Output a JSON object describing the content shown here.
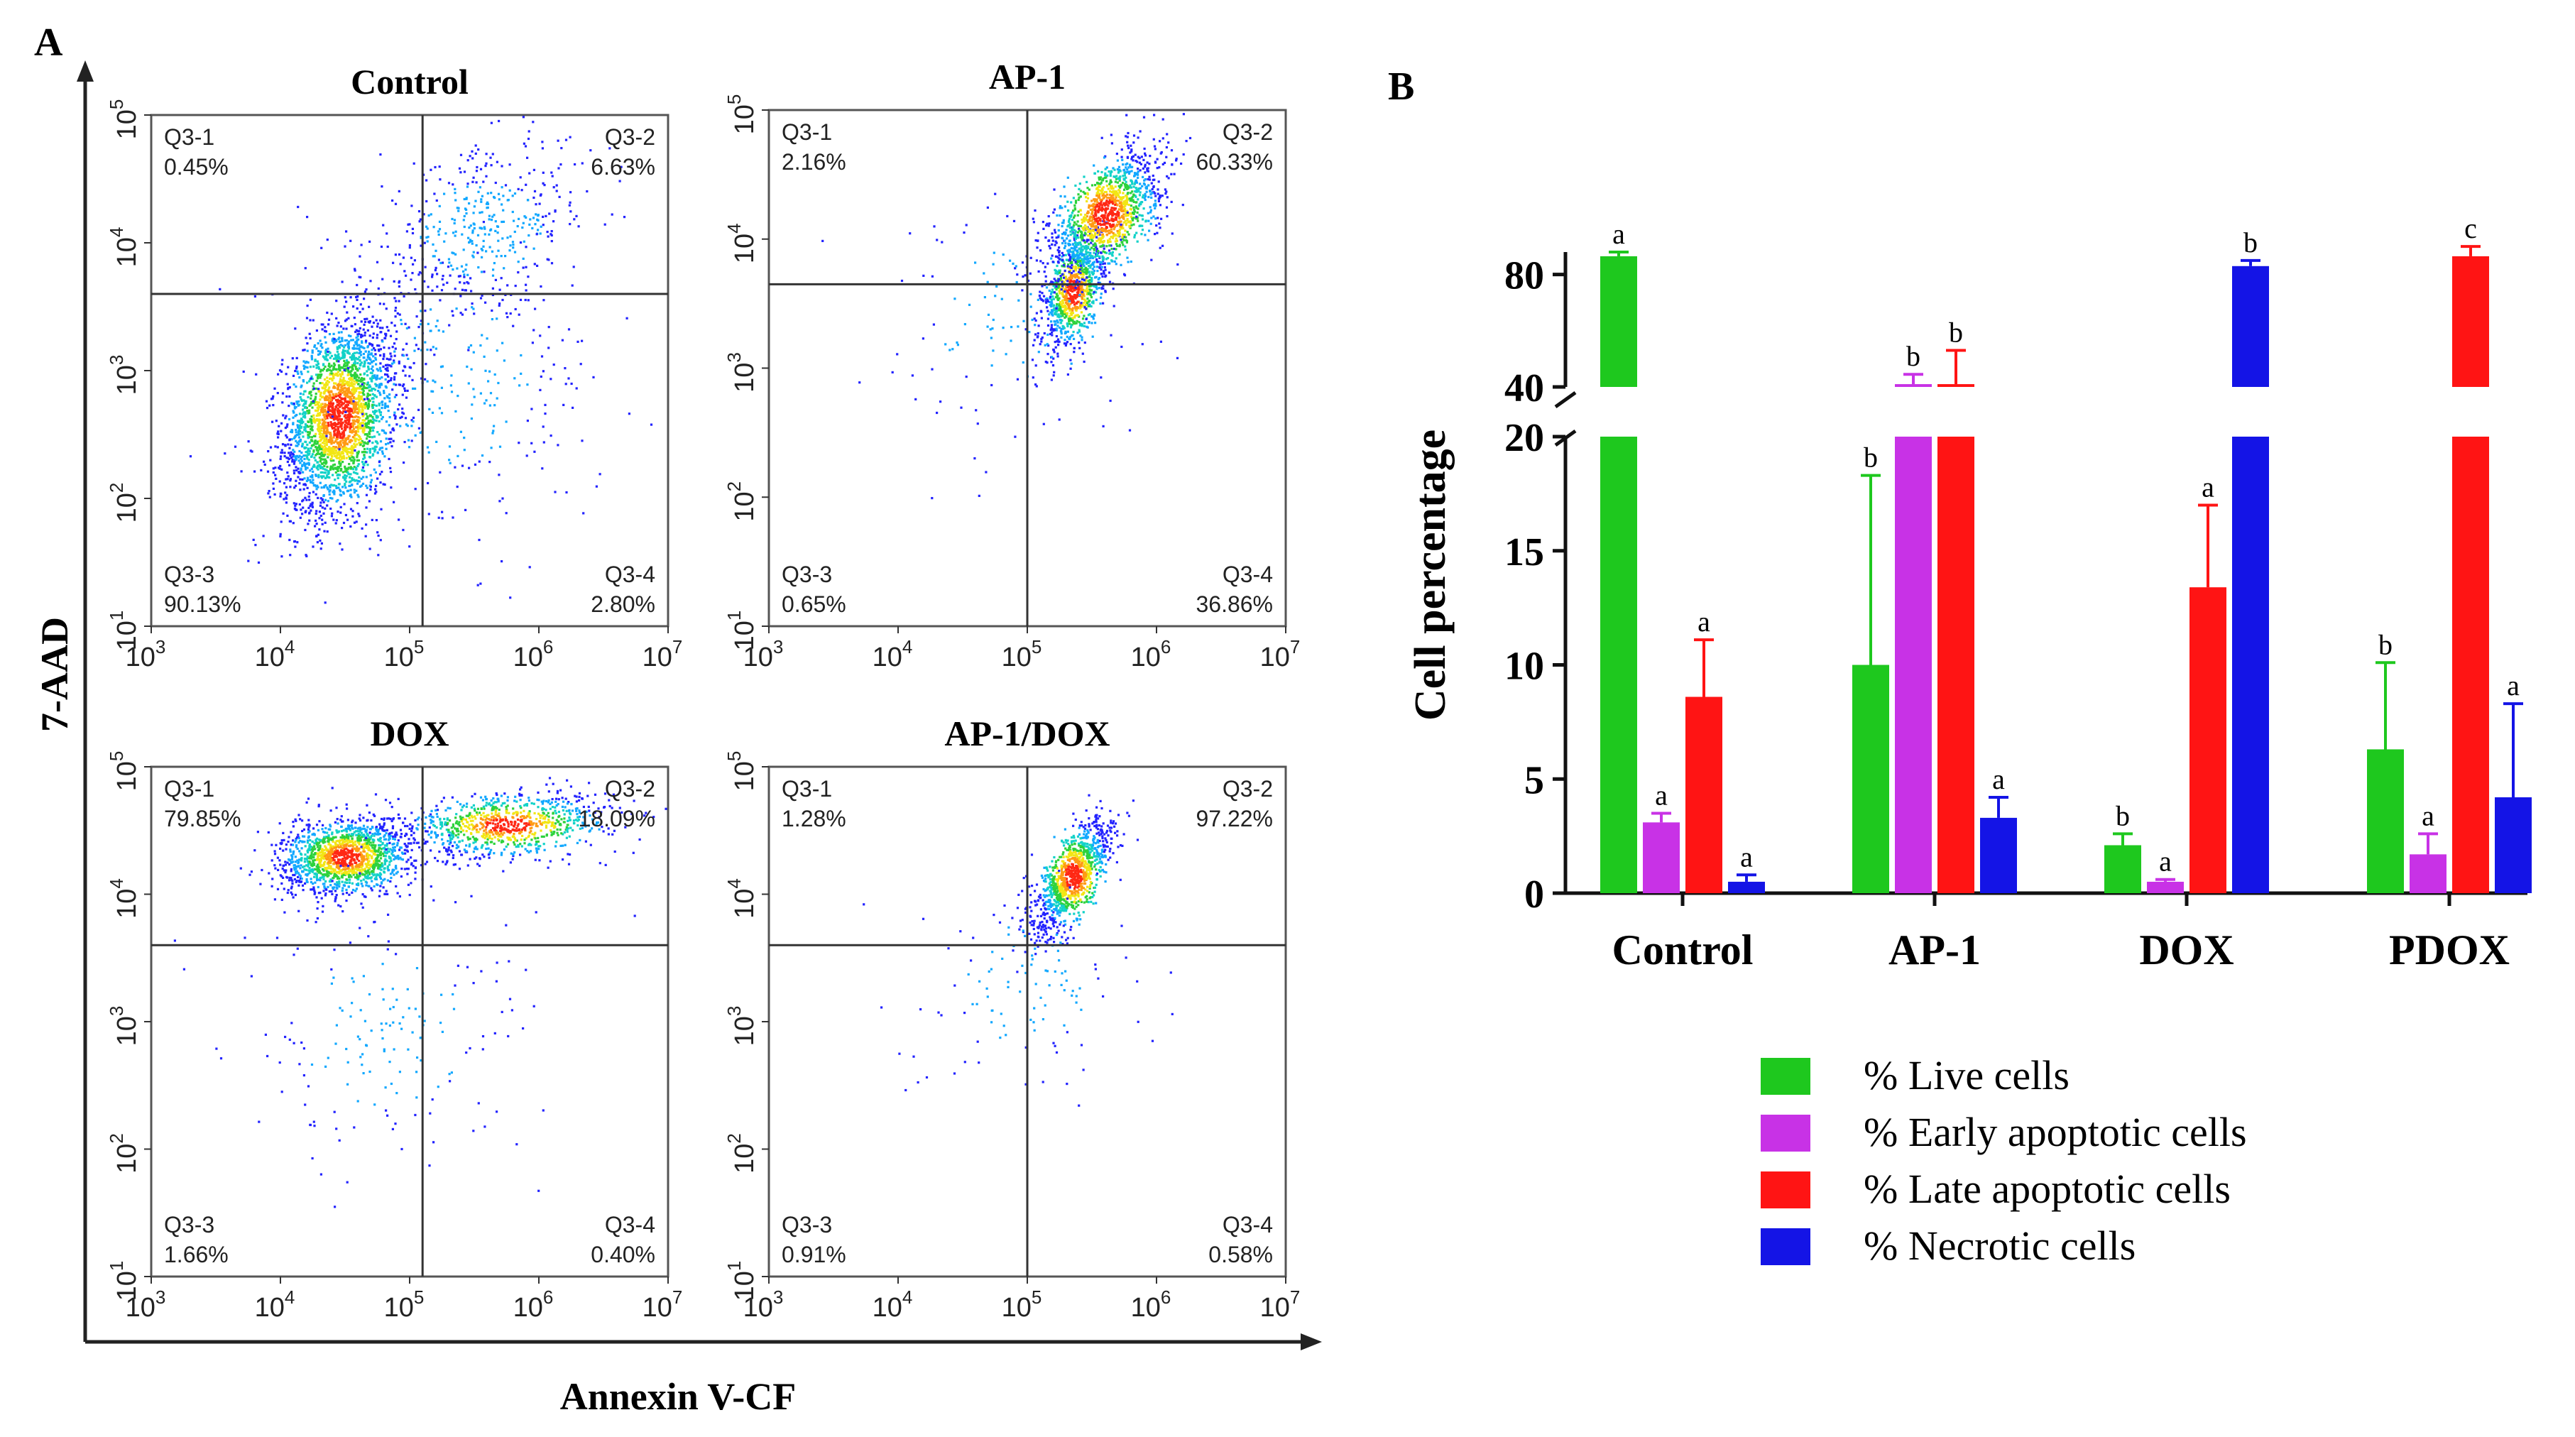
{
  "figure": {
    "panel_a_label": "A",
    "panel_b_label": "B",
    "y_axis_label_a": "7-AAD",
    "x_axis_label_a": "Annexin V-CF"
  },
  "flow_axes": {
    "x_ticks": [
      {
        "base": "10",
        "exp": "3"
      },
      {
        "base": "10",
        "exp": "4"
      },
      {
        "base": "10",
        "exp": "5"
      },
      {
        "base": "10",
        "exp": "6"
      },
      {
        "base": "10",
        "exp": "7"
      }
    ],
    "y_ticks": [
      {
        "base": "10",
        "exp": "1"
      },
      {
        "base": "10",
        "exp": "2"
      },
      {
        "base": "10",
        "exp": "3"
      },
      {
        "base": "10",
        "exp": "4"
      },
      {
        "base": "10",
        "exp": "5"
      }
    ],
    "x_range_log": [
      3,
      7
    ],
    "y_range_log": [
      1,
      5
    ]
  },
  "flow_plots": [
    {
      "title": "Control",
      "gate_x_log": 5.1,
      "gate_y_log": 3.6,
      "quadrants": {
        "q1": {
          "name": "Q3-1",
          "value": "0.45%"
        },
        "q2": {
          "name": "Q3-2",
          "value": "6.63%"
        },
        "q3": {
          "name": "Q3-3",
          "value": "90.13%"
        },
        "q4": {
          "name": "Q3-4",
          "value": "2.80%"
        }
      },
      "clusters": [
        {
          "cx": 4.45,
          "cy": 2.65,
          "sx": 0.22,
          "sy": 0.38,
          "n": 2600,
          "rho": 0.3
        },
        {
          "cx": 5.55,
          "cy": 4.1,
          "sx": 0.45,
          "sy": 0.35,
          "n": 420,
          "rho": 0.4
        },
        {
          "cx": 5.3,
          "cy": 2.9,
          "sx": 0.6,
          "sy": 0.6,
          "n": 300,
          "rho": 0.0
        }
      ]
    },
    {
      "title": "AP-1",
      "gate_x_log": 5.0,
      "gate_y_log": 3.65,
      "quadrants": {
        "q1": {
          "name": "Q3-1",
          "value": "2.16%"
        },
        "q2": {
          "name": "Q3-2",
          "value": "60.33%"
        },
        "q3": {
          "name": "Q3-3",
          "value": "0.65%"
        },
        "q4": {
          "name": "Q3-4",
          "value": "36.86%"
        }
      },
      "clusters": [
        {
          "cx": 5.35,
          "cy": 3.6,
          "sx": 0.12,
          "sy": 0.22,
          "n": 900,
          "rho": 0.5
        },
        {
          "cx": 5.6,
          "cy": 4.2,
          "sx": 0.22,
          "sy": 0.25,
          "n": 1300,
          "rho": 0.6
        },
        {
          "cx": 4.9,
          "cy": 3.4,
          "sx": 0.6,
          "sy": 0.5,
          "n": 120,
          "rho": 0.0
        }
      ]
    },
    {
      "title": "DOX",
      "gate_x_log": 5.1,
      "gate_y_log": 3.6,
      "quadrants": {
        "q1": {
          "name": "Q3-1",
          "value": "79.85%"
        },
        "q2": {
          "name": "Q3-2",
          "value": "18.09%"
        },
        "q3": {
          "name": "Q3-3",
          "value": "1.66%"
        },
        "q4": {
          "name": "Q3-4",
          "value": "0.40%"
        }
      },
      "clusters": [
        {
          "cx": 4.5,
          "cy": 4.3,
          "sx": 0.25,
          "sy": 0.15,
          "n": 1500,
          "rho": 0.2
        },
        {
          "cx": 5.75,
          "cy": 4.55,
          "sx": 0.4,
          "sy": 0.13,
          "n": 900,
          "rho": 0.3
        },
        {
          "cx": 4.8,
          "cy": 2.9,
          "sx": 0.6,
          "sy": 0.55,
          "n": 180,
          "rho": 0.0
        }
      ]
    },
    {
      "title": "AP-1/DOX",
      "gate_x_log": 5.0,
      "gate_y_log": 3.6,
      "quadrants": {
        "q1": {
          "name": "Q3-1",
          "value": "1.28%"
        },
        "q2": {
          "name": "Q3-2",
          "value": "97.22%"
        },
        "q3": {
          "name": "Q3-3",
          "value": "0.91%"
        },
        "q4": {
          "name": "Q3-4",
          "value": "0.58%"
        }
      },
      "clusters": [
        {
          "cx": 5.35,
          "cy": 4.15,
          "sx": 0.15,
          "sy": 0.22,
          "n": 1100,
          "rho": 0.7
        },
        {
          "cx": 5.0,
          "cy": 3.3,
          "sx": 0.45,
          "sy": 0.45,
          "n": 120,
          "rho": 0.2
        }
      ]
    }
  ],
  "chart_data": {
    "type": "bar",
    "ylabel": "Cell percentage",
    "categories": [
      "Control",
      "AP-1",
      "DOX",
      "PDOX"
    ],
    "y_ticks_lower": [
      "0",
      "5",
      "10",
      "15",
      "20"
    ],
    "y_ticks_upper": [
      "40",
      "80"
    ],
    "lower_range": [
      0,
      20
    ],
    "upper_range": [
      40,
      88
    ],
    "series": [
      {
        "name": "% Live cells",
        "color": "#1ec81e",
        "values": [
          86.5,
          10.0,
          2.1,
          6.3
        ],
        "errors": [
          1.5,
          8.3,
          0.5,
          3.8
        ],
        "labels": [
          "a",
          "b",
          "b",
          "b"
        ]
      },
      {
        "name": "% Early apoptotic cells",
        "color": "#c832e6",
        "values": [
          3.1,
          41.0,
          0.5,
          1.7
        ],
        "errors": [
          0.4,
          3.5,
          0.1,
          0.9
        ],
        "labels": [
          "a",
          "b",
          "a",
          "a"
        ]
      },
      {
        "name": "% Late apoptotic cells",
        "color": "#ff1414",
        "values": [
          8.6,
          41.0,
          13.4,
          86.5
        ],
        "errors": [
          2.5,
          12.0,
          3.6,
          3.5
        ],
        "labels": [
          "a",
          "b",
          "a",
          "c"
        ]
      },
      {
        "name": "% Necrotic cells",
        "color": "#1414e6",
        "values": [
          0.5,
          3.3,
          83.0,
          4.2
        ],
        "errors": [
          0.3,
          0.9,
          2.0,
          4.1
        ],
        "labels": [
          "a",
          "a",
          "b",
          "a"
        ]
      }
    ]
  }
}
